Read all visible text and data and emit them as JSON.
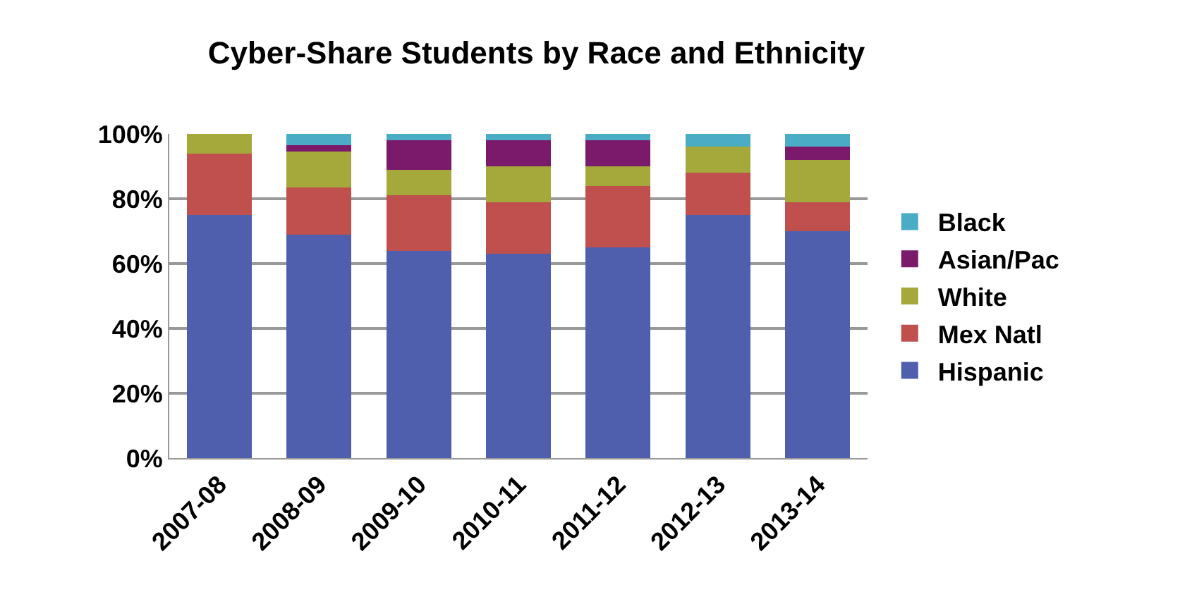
{
  "chart_data": {
    "type": "bar",
    "title": "Cyber-Share Students by Race and Ethnicity",
    "categories": [
      "2007-08",
      "2008-09",
      "2009-10",
      "2010-11",
      "2011-12",
      "2012-13",
      "2013-14"
    ],
    "stacked": true,
    "series": [
      {
        "name": "Hispanic",
        "color": "#4f5fae",
        "values": [
          75,
          69,
          64,
          63,
          65,
          75,
          70
        ]
      },
      {
        "name": "Mex Natl",
        "color": "#c0504d",
        "values": [
          19,
          14.5,
          17,
          16,
          19,
          13,
          9
        ]
      },
      {
        "name": "White",
        "color": "#a5a83a",
        "values": [
          6,
          11,
          8,
          11,
          6,
          8,
          13
        ]
      },
      {
        "name": "Asian/Pac",
        "color": "#7b1a6a",
        "values": [
          0,
          2,
          9,
          8,
          8,
          0,
          4
        ]
      },
      {
        "name": "Black",
        "color": "#4bacc6",
        "values": [
          0,
          3.5,
          2,
          2,
          2,
          4,
          4
        ]
      }
    ],
    "ylim": [
      0,
      100
    ],
    "yticks": [
      {
        "value": 0,
        "label": "0%"
      },
      {
        "value": 20,
        "label": "20%"
      },
      {
        "value": 40,
        "label": "40%"
      },
      {
        "value": 60,
        "label": "60%"
      },
      {
        "value": 80,
        "label": "80%"
      },
      {
        "value": 100,
        "label": "100%"
      }
    ],
    "grid": "y",
    "legend": "right"
  }
}
